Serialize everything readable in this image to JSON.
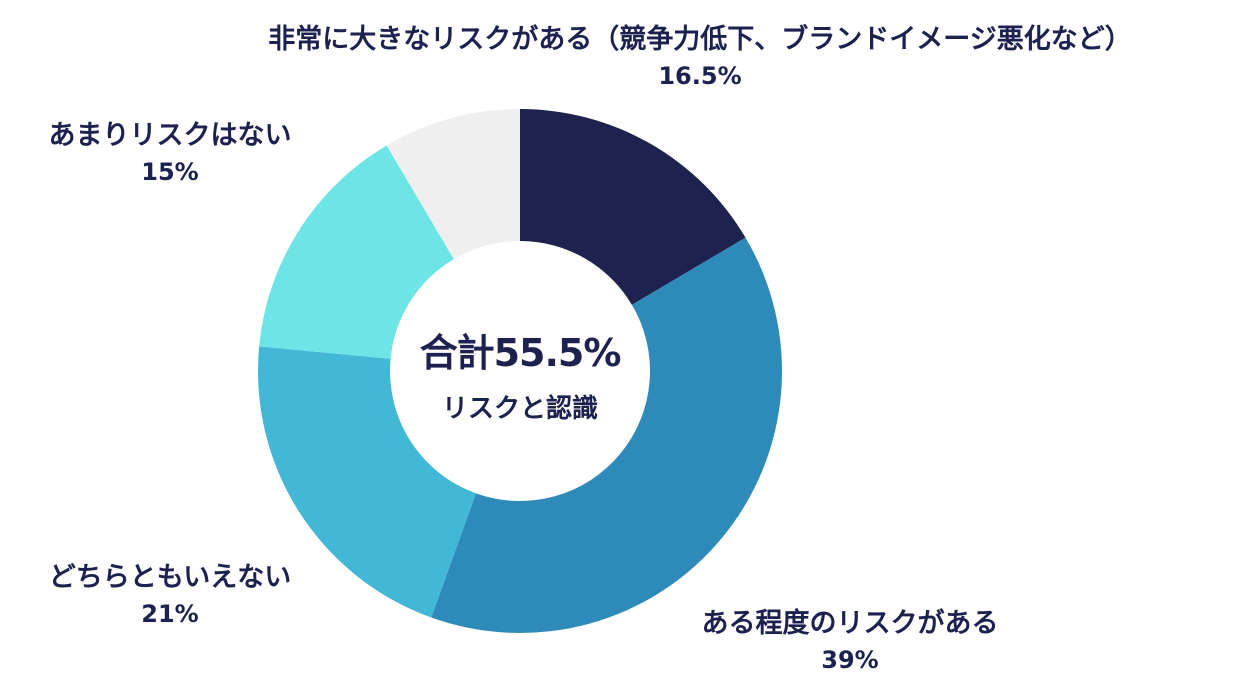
{
  "chart_data": {
    "type": "pie",
    "variant": "donut",
    "center_text": {
      "total": "合計55.5%",
      "subtitle": "リスクと認識"
    },
    "slices": [
      {
        "label": "非常に大きなリスクがある（競争力低下、ブランドイメージ悪化など）",
        "value": 16.5,
        "display": "16.5%",
        "color": "#1d224e"
      },
      {
        "label": "ある程度のリスクがある",
        "value": 39,
        "display": "39%",
        "color": "#2e8ab8"
      },
      {
        "label": "どちらともいえない",
        "value": 21,
        "display": "21%",
        "color": "#42b7d6"
      },
      {
        "label": "あまりリスクはない",
        "value": 15,
        "display": "15%",
        "color": "#6de4e6"
      },
      {
        "value": 8.5,
        "color": "#efefef"
      }
    ],
    "start_angle": "top",
    "direction": "clockwise"
  }
}
